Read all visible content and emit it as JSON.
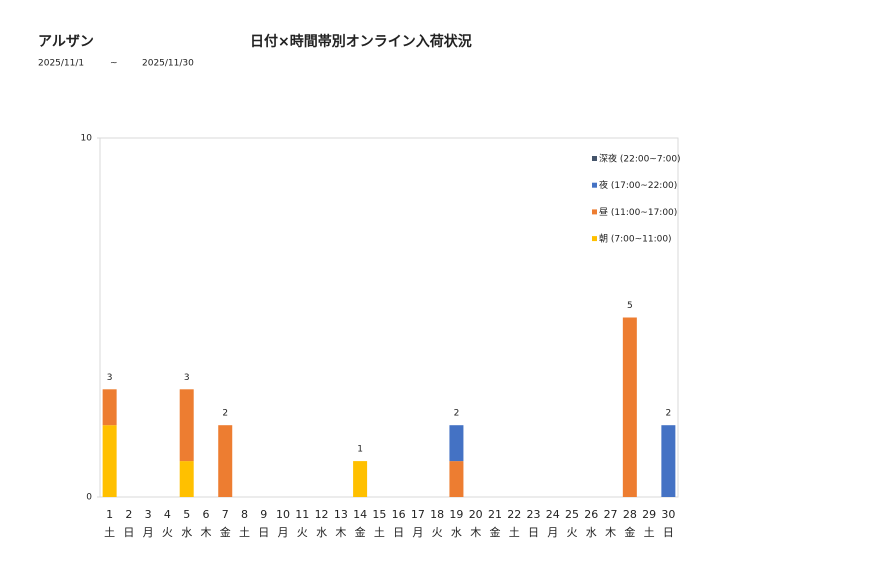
{
  "header": {
    "title": "アルザン",
    "date_from": "2025/11/1",
    "separator": "~",
    "date_to": "2025/11/30"
  },
  "chart_data": {
    "type": "stacked_bar",
    "title": "日付×時間帯別オンライン入荷状況",
    "categories": [
      "1",
      "2",
      "3",
      "4",
      "5",
      "6",
      "7",
      "8",
      "9",
      "10",
      "11",
      "12",
      "13",
      "14",
      "15",
      "16",
      "17",
      "18",
      "19",
      "20",
      "21",
      "22",
      "23",
      "24",
      "25",
      "26",
      "27",
      "28",
      "29",
      "30"
    ],
    "weekdays": [
      "土",
      "日",
      "月",
      "火",
      "水",
      "木",
      "金",
      "土",
      "日",
      "月",
      "火",
      "水",
      "木",
      "金",
      "土",
      "日",
      "月",
      "火",
      "水",
      "木",
      "金",
      "土",
      "日",
      "月",
      "火",
      "水",
      "木",
      "金",
      "土",
      "日"
    ],
    "series": [
      {
        "name": "朝 (7:00~11:00)",
        "color": "#ffc000",
        "values": [
          2,
          0,
          0,
          0,
          1,
          0,
          0,
          0,
          0,
          0,
          0,
          0,
          0,
          1,
          0,
          0,
          0,
          0,
          0,
          0,
          0,
          0,
          0,
          0,
          0,
          0,
          0,
          0,
          0,
          0
        ]
      },
      {
        "name": "昼 (11:00~17:00)",
        "color": "#ed7d31",
        "values": [
          1,
          0,
          0,
          0,
          2,
          0,
          2,
          0,
          0,
          0,
          0,
          0,
          0,
          0,
          0,
          0,
          0,
          0,
          1,
          0,
          0,
          0,
          0,
          0,
          0,
          0,
          0,
          5,
          0,
          0
        ]
      },
      {
        "name": "夜 (17:00~22:00)",
        "color": "#4472c4",
        "values": [
          0,
          0,
          0,
          0,
          0,
          0,
          0,
          0,
          0,
          0,
          0,
          0,
          0,
          0,
          0,
          0,
          0,
          0,
          1,
          0,
          0,
          0,
          0,
          0,
          0,
          0,
          0,
          0,
          0,
          2
        ]
      },
      {
        "name": "深夜 (22:00~7:00)",
        "color": "#44546a",
        "values": [
          0,
          0,
          0,
          0,
          0,
          0,
          0,
          0,
          0,
          0,
          0,
          0,
          0,
          0,
          0,
          0,
          0,
          0,
          0,
          0,
          0,
          0,
          0,
          0,
          0,
          0,
          0,
          0,
          0,
          0
        ]
      }
    ],
    "totals": [
      3,
      null,
      null,
      null,
      3,
      null,
      2,
      null,
      null,
      null,
      null,
      null,
      null,
      1,
      null,
      null,
      null,
      null,
      2,
      null,
      null,
      null,
      null,
      null,
      null,
      null,
      null,
      5,
      null,
      2
    ],
    "ylim": [
      0,
      10
    ],
    "yticks": [
      0,
      10
    ],
    "legend": "top-right"
  }
}
